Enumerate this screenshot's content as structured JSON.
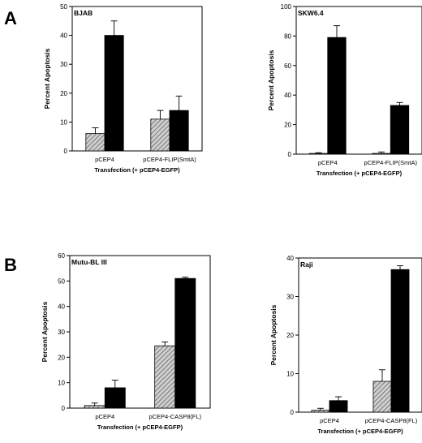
{
  "panel_labels": [
    "A",
    "B"
  ],
  "colors": {
    "treated": "#000000",
    "control_hatch": "#777777",
    "axis": "#000000"
  },
  "chart_data": [
    {
      "type": "bar",
      "title": "BJAB",
      "ylabel": "Percent Apoptosis",
      "xlabel": "Transfection (+ pCEP4-EGFP)",
      "ylim": [
        0,
        50
      ],
      "yticks": [
        0,
        10,
        20,
        30,
        40,
        50
      ],
      "categories": [
        "pCEP4",
        "pCEP4-FLIP(SmtA)"
      ],
      "series": [
        {
          "style": "hatched",
          "values": [
            6,
            11
          ],
          "errors": [
            2,
            3
          ]
        },
        {
          "style": "solid",
          "values": [
            40,
            14
          ],
          "errors": [
            5,
            5
          ]
        }
      ]
    },
    {
      "type": "bar",
      "title": "SKW6.4",
      "ylabel": "Percent Apoptosis",
      "xlabel": "Transfection (+ pCEP4-EGFP)",
      "ylim": [
        0,
        100
      ],
      "yticks": [
        0,
        20,
        40,
        60,
        80,
        100
      ],
      "categories": [
        "pCEP4",
        "pCEP4-FLIP(SmtA)"
      ],
      "series": [
        {
          "style": "hatched",
          "values": [
            0.5,
            0.5
          ],
          "errors": [
            0.5,
            1
          ]
        },
        {
          "style": "solid",
          "values": [
            79,
            33
          ],
          "errors": [
            8,
            2
          ]
        }
      ]
    },
    {
      "type": "bar",
      "title": "Mutu-BL III",
      "ylabel": "Percent Apoptosis",
      "xlabel": "Transfection (+ pCEP4-EGFP)",
      "ylim": [
        0,
        60
      ],
      "yticks": [
        0,
        10,
        20,
        30,
        40,
        50,
        60
      ],
      "categories": [
        "pCEP4",
        "pCEP4-CASP8(FL)"
      ],
      "series": [
        {
          "style": "hatched",
          "values": [
            1,
            24.5
          ],
          "errors": [
            1,
            1.5
          ]
        },
        {
          "style": "solid",
          "values": [
            8,
            51
          ],
          "errors": [
            3,
            0.5
          ]
        }
      ]
    },
    {
      "type": "bar",
      "title": "Raji",
      "ylabel": "Percent Apoptosis",
      "xlabel": "Transfection (+ pCEP4-EGFP)",
      "ylim": [
        0,
        40
      ],
      "yticks": [
        0,
        10,
        20,
        30,
        40
      ],
      "categories": [
        "pCEP4",
        "pCEP4-CASP8(FL)"
      ],
      "series": [
        {
          "style": "hatched",
          "values": [
            0.5,
            8
          ],
          "errors": [
            0.5,
            3
          ]
        },
        {
          "style": "solid",
          "values": [
            3,
            37
          ],
          "errors": [
            1,
            1
          ]
        }
      ]
    }
  ]
}
